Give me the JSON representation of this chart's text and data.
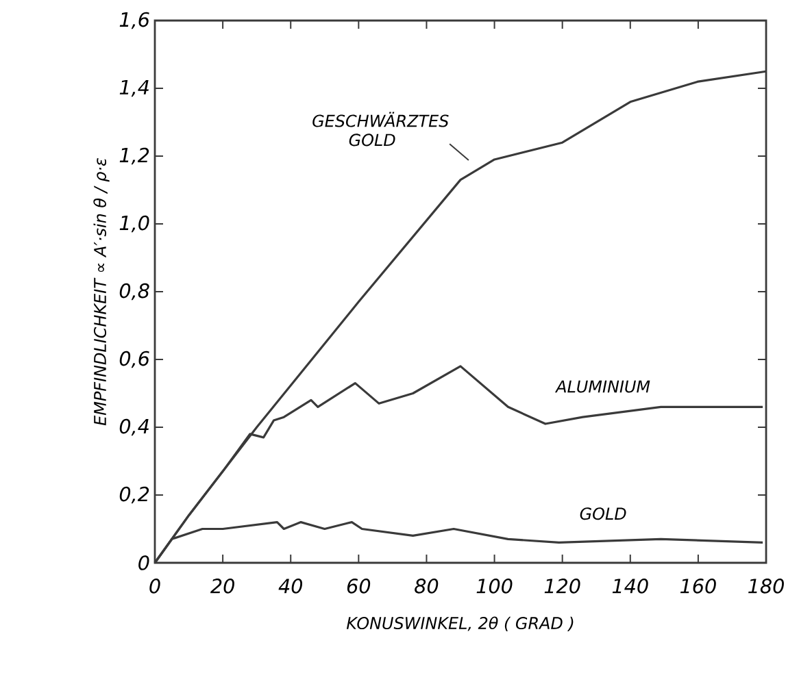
{
  "chart_data": {
    "type": "line",
    "xlabel": "KONUSWINKEL, 2θ ( GRAD )",
    "ylabel": "EMPFINDLICHKEIT ∝ A′·sin θ / ρ·ε",
    "xlim": [
      0,
      180
    ],
    "ylim": [
      0,
      1.6
    ],
    "xticks": [
      0,
      20,
      40,
      60,
      80,
      100,
      120,
      140,
      160,
      180
    ],
    "yticks": [
      {
        "value": 0,
        "label": "0"
      },
      {
        "value": 0.2,
        "label": "0,2"
      },
      {
        "value": 0.4,
        "label": "0,4"
      },
      {
        "value": 0.6,
        "label": "0,6"
      },
      {
        "value": 0.8,
        "label": "0,8"
      },
      {
        "value": 1.0,
        "label": "1,0"
      },
      {
        "value": 1.2,
        "label": "1,2"
      },
      {
        "value": 1.4,
        "label": "1,4"
      },
      {
        "value": 1.6,
        "label": "1,6"
      }
    ],
    "grid": false,
    "line_style": "solid",
    "series": [
      {
        "name": "GESCHWÄRZTES GOLD",
        "color": "#3a3a3a",
        "x": [
          0,
          10,
          30,
          60,
          90,
          100,
          120,
          140,
          160,
          180
        ],
        "values": [
          0,
          0.14,
          0.4,
          0.77,
          1.13,
          1.19,
          1.24,
          1.36,
          1.42,
          1.45
        ]
      },
      {
        "name": "ALUMINIUM",
        "color": "#3a3a3a",
        "x": [
          0,
          10,
          20,
          28,
          32,
          35,
          38,
          46,
          48,
          59,
          66,
          76,
          90,
          104,
          115,
          126,
          149,
          179
        ],
        "values": [
          0,
          0.14,
          0.27,
          0.38,
          0.37,
          0.42,
          0.43,
          0.48,
          0.46,
          0.53,
          0.47,
          0.5,
          0.58,
          0.46,
          0.41,
          0.43,
          0.46,
          0.46
        ]
      },
      {
        "name": "GOLD",
        "color": "#3a3a3a",
        "x": [
          0,
          5,
          14,
          20,
          36,
          38,
          43,
          50,
          58,
          61,
          76,
          88,
          104,
          119,
          149,
          179
        ],
        "values": [
          0,
          0.07,
          0.1,
          0.1,
          0.12,
          0.1,
          0.12,
          0.1,
          0.12,
          0.1,
          0.08,
          0.1,
          0.07,
          0.06,
          0.07,
          0.06
        ]
      }
    ]
  }
}
